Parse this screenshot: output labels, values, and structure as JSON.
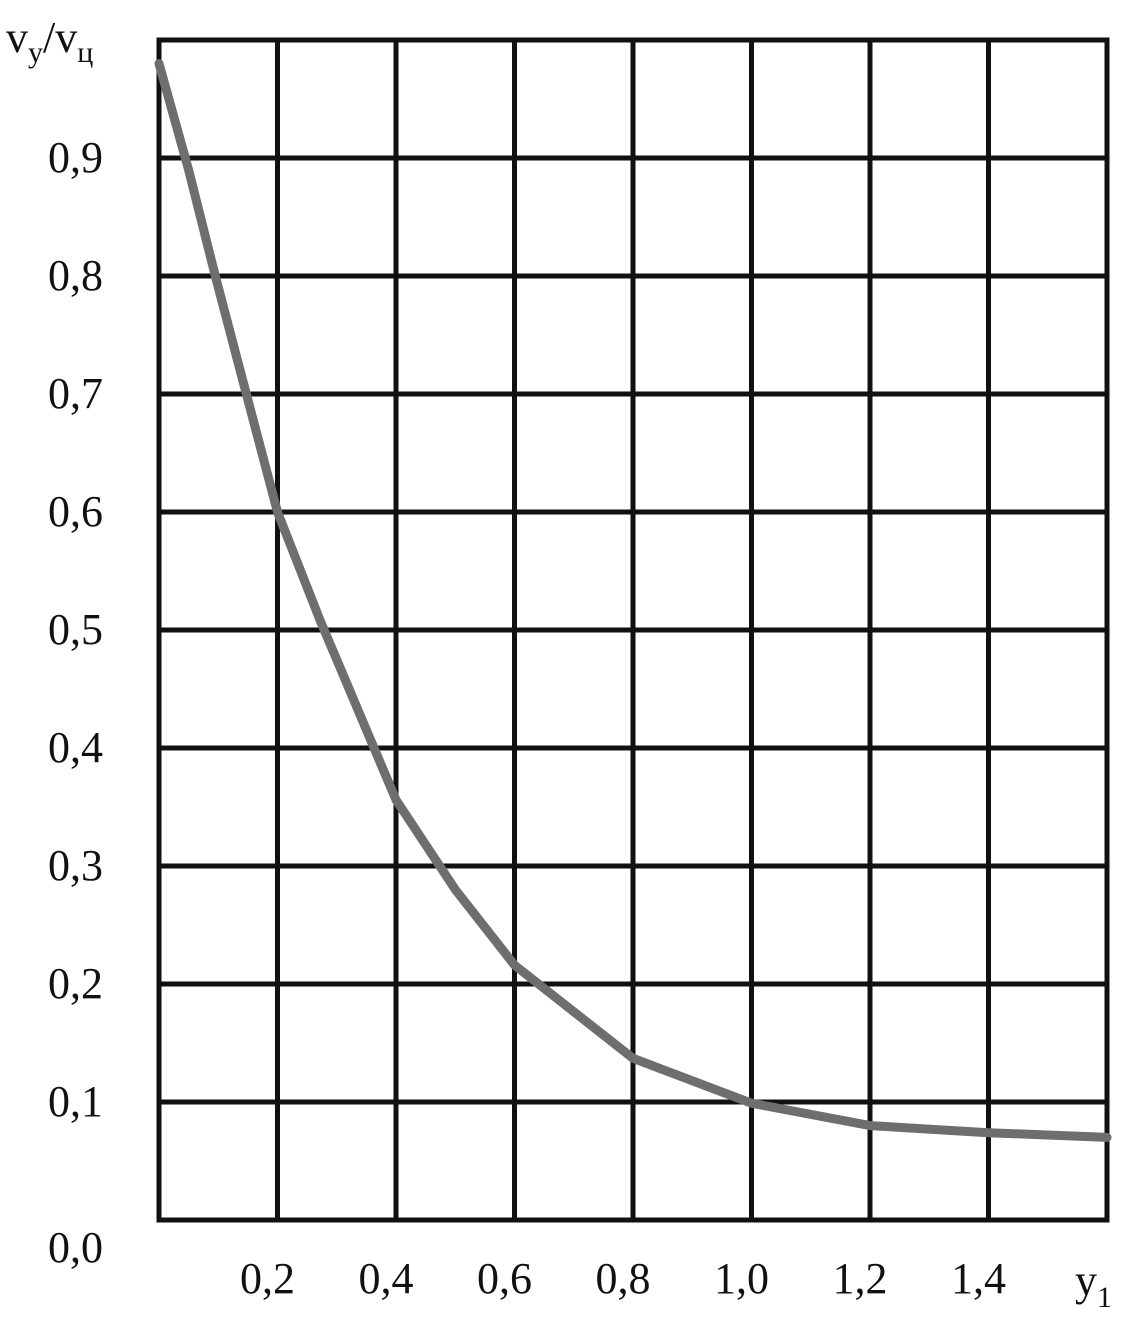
{
  "chart_data": {
    "type": "line",
    "y_label": [
      "v",
      "у",
      "/v",
      "ц"
    ],
    "x_label": [
      "y",
      "1"
    ],
    "x": [
      0,
      0.05,
      0.095,
      0.15,
      0.2,
      0.272,
      0.4,
      0.5,
      0.6,
      0.8,
      1.0,
      1.2,
      1.4,
      1.6
    ],
    "series": [
      {
        "color": "#6e6e6e",
        "values": [
          0.98,
          0.89,
          0.8,
          0.695,
          0.6,
          0.508,
          0.356,
          0.28,
          0.216,
          0.137,
          0.099,
          0.08,
          0.074,
          0.07
        ]
      }
    ],
    "xlim": [
      0,
      1.6
    ],
    "ylim": [
      0,
      1.0
    ],
    "xticks": [
      {
        "value": 0.2,
        "label": "0,2"
      },
      {
        "value": 0.4,
        "label": "0,4"
      },
      {
        "value": 0.6,
        "label": "0,6"
      },
      {
        "value": 0.8,
        "label": "0,8"
      },
      {
        "value": 1.0,
        "label": "1,0"
      },
      {
        "value": 1.2,
        "label": "1,2"
      },
      {
        "value": 1.4,
        "label": "1,4"
      }
    ],
    "yticks": [
      {
        "value": 0,
        "label": "0,0"
      },
      {
        "value": 0.1,
        "label": "0,1"
      },
      {
        "value": 0.2,
        "label": "0,2"
      },
      {
        "value": 0.3,
        "label": "0,3"
      },
      {
        "value": 0.4,
        "label": "0,4"
      },
      {
        "value": 0.5,
        "label": "0,5"
      },
      {
        "value": 0.6,
        "label": "0,6"
      },
      {
        "value": 0.7,
        "label": "0,7"
      },
      {
        "value": 0.8,
        "label": "0,8"
      },
      {
        "value": 0.9,
        "label": "0,9"
      }
    ],
    "grid": true
  }
}
